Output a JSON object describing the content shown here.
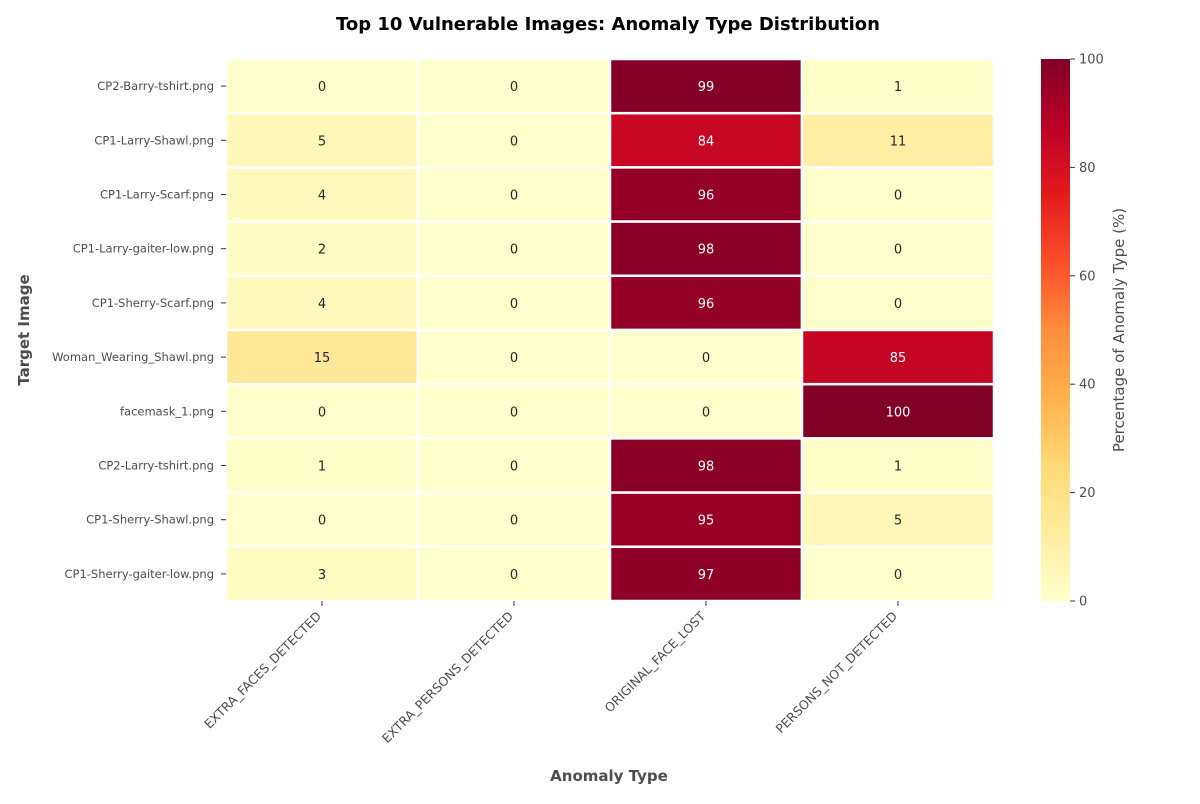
{
  "chart_data": {
    "type": "heatmap",
    "title": "Top 10 Vulnerable Images: Anomaly Type Distribution",
    "xlabel": "Anomaly Type",
    "ylabel": "Target Image",
    "x_categories": [
      "EXTRA_FACES_DETECTED",
      "EXTRA_PERSONS_DETECTED",
      "ORIGINAL_FACE_LOST",
      "PERSONS_NOT_DETECTED"
    ],
    "y_categories": [
      "CP2-Barry-tshirt.png",
      "CP1-Larry-Shawl.png",
      "CP1-Larry-Scarf.png",
      "CP1-Larry-gaiter-low.png",
      "CP1-Sherry-Scarf.png",
      "Woman_Wearing_Shawl.png",
      "facemask_1.png",
      "CP2-Larry-tshirt.png",
      "CP1-Sherry-Shawl.png",
      "CP1-Sherry-gaiter-low.png"
    ],
    "values": [
      [
        0,
        0,
        99,
        1
      ],
      [
        5,
        0,
        84,
        11
      ],
      [
        4,
        0,
        96,
        0
      ],
      [
        2,
        0,
        98,
        0
      ],
      [
        4,
        0,
        96,
        0
      ],
      [
        15,
        0,
        0,
        85
      ],
      [
        0,
        0,
        0,
        100
      ],
      [
        1,
        0,
        98,
        1
      ],
      [
        0,
        0,
        95,
        5
      ],
      [
        3,
        0,
        97,
        0
      ]
    ],
    "colorbar": {
      "label": "Percentage of Anomaly Type (%)",
      "range": [
        0,
        100
      ],
      "ticks": [
        0,
        20,
        40,
        60,
        80,
        100
      ],
      "colormap": "YlOrRd"
    },
    "colors": {
      "annotation_dark": "#262626",
      "annotation_light": "#ffffff",
      "grid_line": "#ffffff",
      "axis_text": "#4d4d4d"
    }
  }
}
